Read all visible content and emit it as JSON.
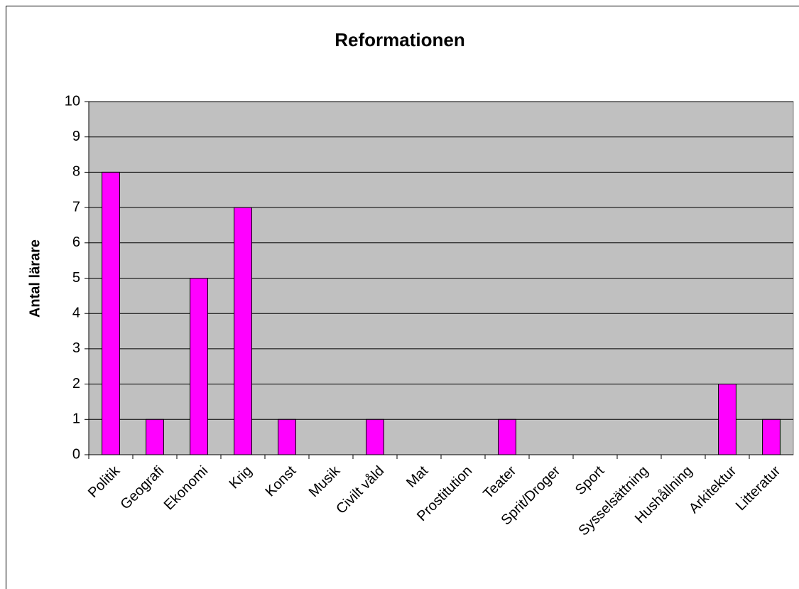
{
  "chart_data": {
    "type": "bar",
    "title": "Reformationen",
    "y_label": "Antal lärare",
    "categories": [
      "Politik",
      "Geografi",
      "Ekonomi",
      "Krig",
      "Konst",
      "Musik",
      "Civilt våld",
      "Mat",
      "Prostitution",
      "Teater",
      "Sprit/Droger",
      "Sport",
      "Sysselsättning",
      "Hushållning",
      "Arkitektur",
      "Litteratur"
    ],
    "values": [
      8,
      1,
      5,
      7,
      1,
      0,
      1,
      0,
      0,
      1,
      0,
      0,
      0,
      0,
      2,
      1
    ],
    "color": "#ff00ff",
    "ylim": [
      0,
      10
    ],
    "yticks": [
      0,
      1,
      2,
      3,
      4,
      5,
      6,
      7,
      8,
      9,
      10
    ],
    "grid": true
  }
}
